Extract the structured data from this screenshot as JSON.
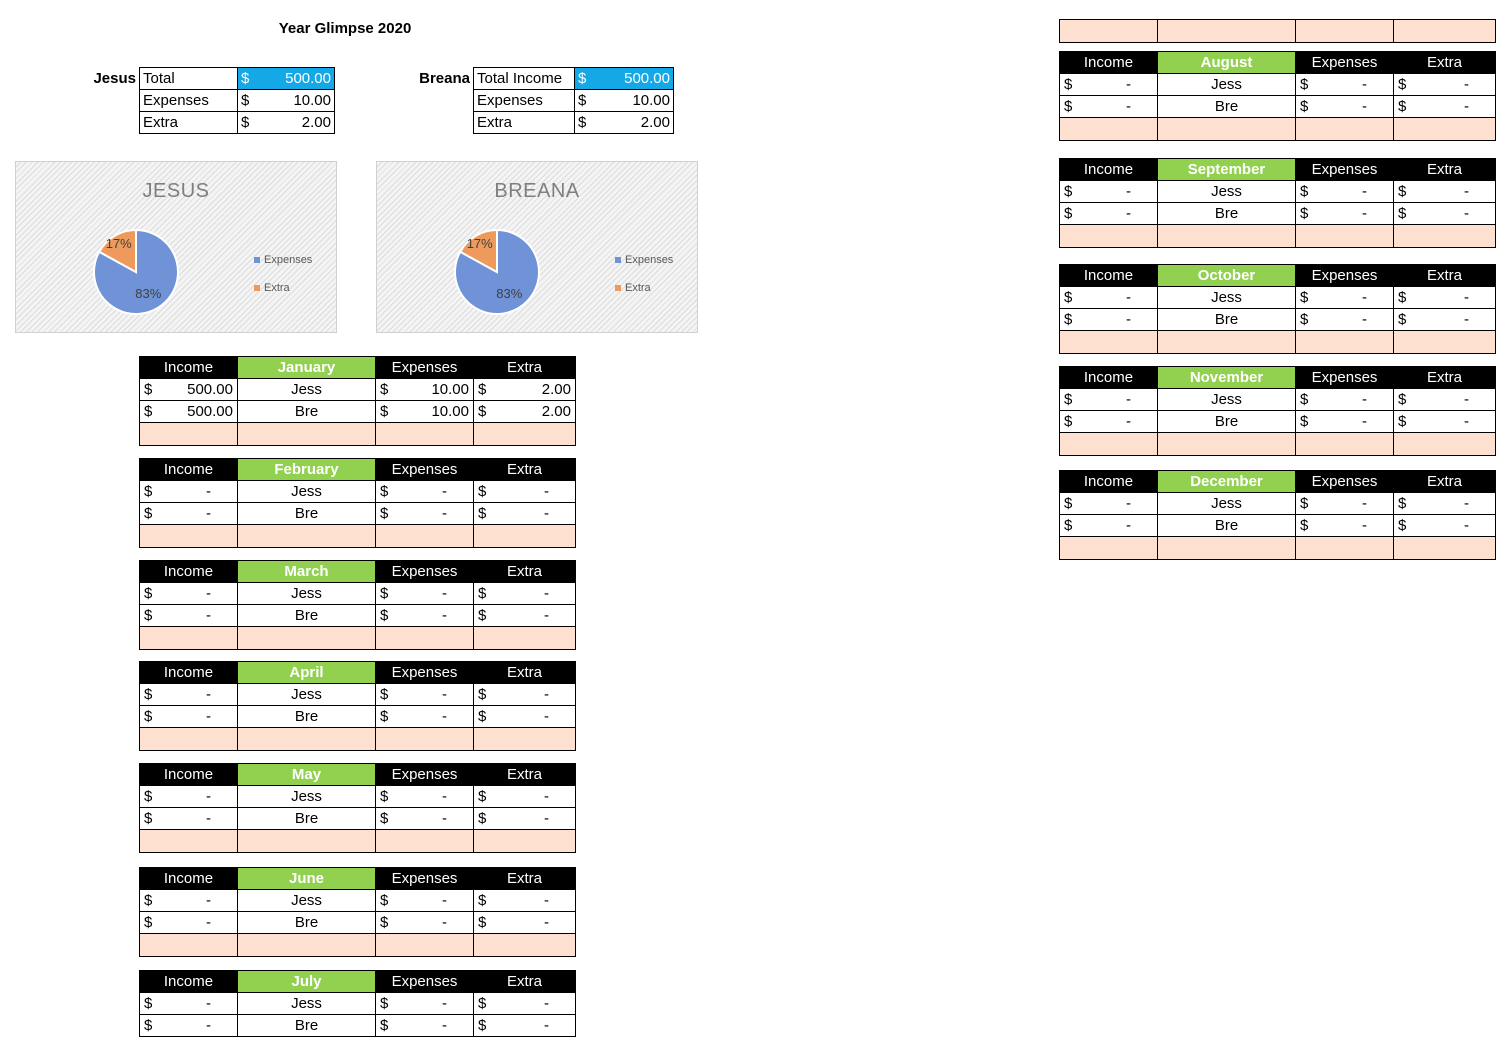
{
  "title": "Year Glimpse 2020",
  "summary": {
    "jesus": {
      "label": "Jesus",
      "rows": [
        {
          "name": "Total",
          "cur": "$",
          "amount": "500.00"
        },
        {
          "name": "Expenses",
          "cur": "$",
          "amount": "10.00"
        },
        {
          "name": "Extra",
          "cur": "$",
          "amount": "2.00"
        }
      ]
    },
    "breana": {
      "label": "Breana",
      "rows": [
        {
          "name": "Total Income",
          "cur": "$",
          "amount": "500.00"
        },
        {
          "name": "Expenses",
          "cur": "$",
          "amount": "10.00"
        },
        {
          "name": "Extra",
          "cur": "$",
          "amount": "2.00"
        }
      ]
    }
  },
  "chart_data": [
    {
      "type": "pie",
      "title": "JESUS",
      "categories": [
        "Expenses",
        "Extra"
      ],
      "values": [
        83,
        17
      ],
      "data_labels": [
        "83%",
        "17%"
      ],
      "colors": [
        "#6f93d6",
        "#ee9a5c"
      ],
      "legend_position": "right"
    },
    {
      "type": "pie",
      "title": "BREANA",
      "categories": [
        "Expenses",
        "Extra"
      ],
      "values": [
        83,
        17
      ],
      "data_labels": [
        "83%",
        "17%"
      ],
      "colors": [
        "#6f93d6",
        "#ee9a5c"
      ],
      "legend_position": "right"
    }
  ],
  "headers": {
    "income": "Income",
    "expenses": "Expenses",
    "extra": "Extra"
  },
  "months": [
    {
      "name": "January",
      "rows": [
        {
          "person": "Jess",
          "income": "500.00",
          "expenses": "10.00",
          "extra": "2.00"
        },
        {
          "person": "Bre",
          "income": "500.00",
          "expenses": "10.00",
          "extra": "2.00"
        }
      ]
    },
    {
      "name": "February",
      "rows": [
        {
          "person": "Jess",
          "income": "-",
          "expenses": "-",
          "extra": "-"
        },
        {
          "person": "Bre",
          "income": "-",
          "expenses": "-",
          "extra": "-"
        }
      ]
    },
    {
      "name": "March",
      "rows": [
        {
          "person": "Jess",
          "income": "-",
          "expenses": "-",
          "extra": "-"
        },
        {
          "person": "Bre",
          "income": "-",
          "expenses": "-",
          "extra": "-"
        }
      ]
    },
    {
      "name": "April",
      "rows": [
        {
          "person": "Jess",
          "income": "-",
          "expenses": "-",
          "extra": "-"
        },
        {
          "person": "Bre",
          "income": "-",
          "expenses": "-",
          "extra": "-"
        }
      ]
    },
    {
      "name": "May",
      "rows": [
        {
          "person": "Jess",
          "income": "-",
          "expenses": "-",
          "extra": "-"
        },
        {
          "person": "Bre",
          "income": "-",
          "expenses": "-",
          "extra": "-"
        }
      ]
    },
    {
      "name": "June",
      "rows": [
        {
          "person": "Jess",
          "income": "-",
          "expenses": "-",
          "extra": "-"
        },
        {
          "person": "Bre",
          "income": "-",
          "expenses": "-",
          "extra": "-"
        }
      ]
    },
    {
      "name": "July",
      "rows": [
        {
          "person": "Jess",
          "income": "-",
          "expenses": "-",
          "extra": "-"
        },
        {
          "person": "Bre",
          "income": "-",
          "expenses": "-",
          "extra": "-"
        }
      ]
    },
    {
      "name": "August",
      "rows": [
        {
          "person": "Jess",
          "income": "-",
          "expenses": "-",
          "extra": "-"
        },
        {
          "person": "Bre",
          "income": "-",
          "expenses": "-",
          "extra": "-"
        }
      ]
    },
    {
      "name": "September",
      "rows": [
        {
          "person": "Jess",
          "income": "-",
          "expenses": "-",
          "extra": "-"
        },
        {
          "person": "Bre",
          "income": "-",
          "expenses": "-",
          "extra": "-"
        }
      ]
    },
    {
      "name": "October",
      "rows": [
        {
          "person": "Jess",
          "income": "-",
          "expenses": "-",
          "extra": "-"
        },
        {
          "person": "Bre",
          "income": "-",
          "expenses": "-",
          "extra": "-"
        }
      ]
    },
    {
      "name": "November",
      "rows": [
        {
          "person": "Jess",
          "income": "-",
          "expenses": "-",
          "extra": "-"
        },
        {
          "person": "Bre",
          "income": "-",
          "expenses": "-",
          "extra": "-"
        }
      ]
    },
    {
      "name": "December",
      "rows": [
        {
          "person": "Jess",
          "income": "-",
          "expenses": "-",
          "extra": "-"
        },
        {
          "person": "Bre",
          "income": "-",
          "expenses": "-",
          "extra": "-"
        }
      ]
    }
  ],
  "currency": "$"
}
